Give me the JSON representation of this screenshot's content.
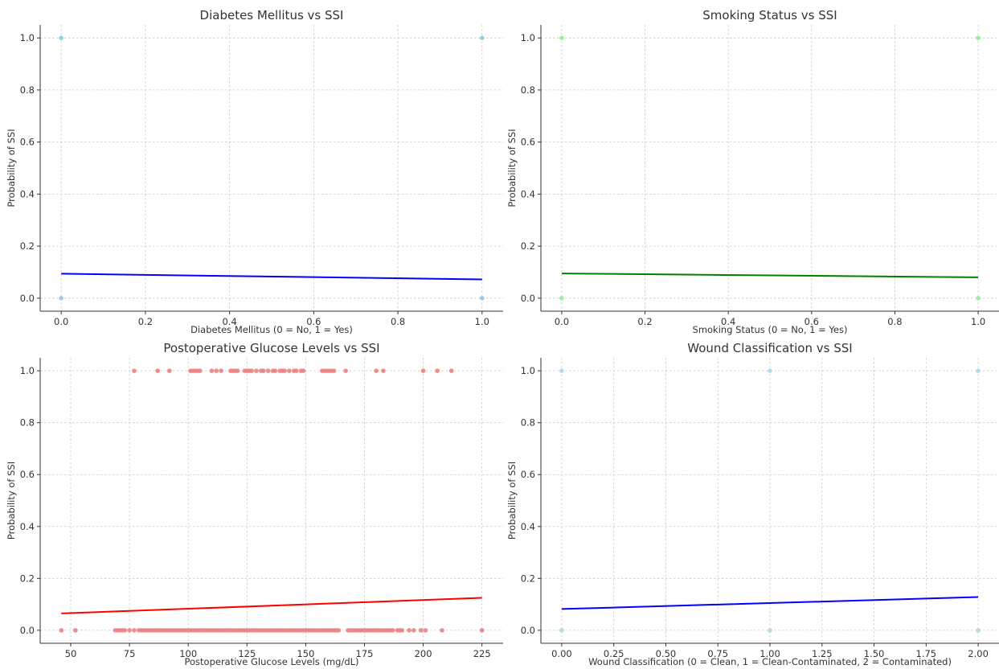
{
  "chart_data": [
    {
      "id": "diabetes",
      "type": "scatter",
      "title": "Diabetes Mellitus vs SSI",
      "xlabel": "Diabetes Mellitus (0 = No, 1 = Yes)",
      "ylabel": "Probability of SSI",
      "xlim": [
        -0.05,
        1.05
      ],
      "ylim": [
        -0.05,
        1.05
      ],
      "xticks": [
        0.0,
        0.2,
        0.4,
        0.6,
        0.8,
        1.0
      ],
      "xtick_labels": [
        "0.0",
        "0.2",
        "0.4",
        "0.6",
        "0.8",
        "1.0"
      ],
      "yticks": [
        0.0,
        0.2,
        0.4,
        0.6,
        0.8,
        1.0
      ],
      "ytick_labels": [
        "0.0",
        "0.2",
        "0.4",
        "0.6",
        "0.8",
        "1.0"
      ],
      "grid": true,
      "points": {
        "x": [
          0,
          0,
          1,
          1
        ],
        "y": [
          0,
          1,
          0,
          1
        ],
        "color": "#8ec9e0"
      },
      "fit_line": {
        "x": [
          0,
          1
        ],
        "y": [
          0.094,
          0.072
        ],
        "color": "#0000ff"
      }
    },
    {
      "id": "smoking",
      "type": "scatter",
      "title": "Smoking Status vs SSI",
      "xlabel": "Smoking Status (0 = No, 1 = Yes)",
      "ylabel": "Probability of SSI",
      "xlim": [
        -0.05,
        1.05
      ],
      "ylim": [
        -0.05,
        1.05
      ],
      "xticks": [
        0.0,
        0.2,
        0.4,
        0.6,
        0.8,
        1.0
      ],
      "xtick_labels": [
        "0.0",
        "0.2",
        "0.4",
        "0.6",
        "0.8",
        "1.0"
      ],
      "yticks": [
        0.0,
        0.2,
        0.4,
        0.6,
        0.8,
        1.0
      ],
      "ytick_labels": [
        "0.0",
        "0.2",
        "0.4",
        "0.6",
        "0.8",
        "1.0"
      ],
      "grid": true,
      "points": {
        "x": [
          0,
          0,
          1,
          1
        ],
        "y": [
          0,
          1,
          0,
          1
        ],
        "color": "#90ee90"
      },
      "fit_line": {
        "x": [
          0,
          1
        ],
        "y": [
          0.095,
          0.08
        ],
        "color": "#008000"
      }
    },
    {
      "id": "glucose",
      "type": "scatter",
      "title": "Postoperative Glucose Levels vs SSI",
      "xlabel": "Postoperative Glucose Levels (mg/dL)",
      "ylabel": "Probability of SSI",
      "xlim": [
        37,
        234
      ],
      "ylim": [
        -0.05,
        1.05
      ],
      "xticks": [
        50,
        75,
        100,
        125,
        150,
        175,
        200,
        225
      ],
      "xtick_labels": [
        "50",
        "75",
        "100",
        "125",
        "150",
        "175",
        "200",
        "225"
      ],
      "yticks": [
        0.0,
        0.2,
        0.4,
        0.6,
        0.8,
        1.0
      ],
      "ytick_labels": [
        "0.0",
        "0.2",
        "0.4",
        "0.6",
        "0.8",
        "1.0"
      ],
      "grid": true,
      "points_y1": [
        77,
        87,
        92,
        101,
        102,
        103,
        104,
        105,
        110,
        112,
        114,
        118,
        119,
        120,
        121,
        124,
        125,
        126,
        127,
        129,
        131,
        132,
        134,
        136,
        137,
        139,
        140,
        141,
        143,
        145,
        146,
        148,
        149,
        157,
        158,
        159,
        160,
        161,
        162,
        167,
        180,
        183,
        200,
        206,
        212
      ],
      "points_y0": [
        46,
        52,
        69,
        70,
        71,
        72,
        73,
        75,
        77,
        79,
        80,
        81,
        82,
        83,
        84,
        85,
        86,
        87,
        88,
        89,
        90,
        91,
        92,
        93,
        94,
        95,
        96,
        97,
        98,
        99,
        100,
        101,
        102,
        103,
        104,
        105,
        106,
        107,
        108,
        109,
        110,
        111,
        112,
        113,
        114,
        115,
        116,
        117,
        118,
        119,
        120,
        121,
        122,
        123,
        124,
        125,
        126,
        127,
        128,
        129,
        130,
        131,
        132,
        133,
        134,
        135,
        136,
        137,
        138,
        139,
        140,
        141,
        142,
        143,
        144,
        145,
        146,
        147,
        148,
        149,
        150,
        151,
        152,
        153,
        154,
        155,
        156,
        157,
        158,
        159,
        160,
        161,
        162,
        163,
        164,
        168,
        169,
        170,
        171,
        172,
        173,
        174,
        175,
        176,
        177,
        178,
        179,
        180,
        181,
        182,
        183,
        184,
        185,
        186,
        187,
        189,
        190,
        191,
        194,
        196,
        199,
        201,
        208,
        225
      ],
      "point_color": "#f08080",
      "fit_line": {
        "x": [
          46,
          225
        ],
        "y": [
          0.065,
          0.125
        ],
        "color": "#ff0000"
      }
    },
    {
      "id": "wound",
      "type": "scatter",
      "title": "Wound Classification vs SSI",
      "xlabel": "Wound Classification (0 = Clean, 1 = Clean-Contaminated, 2 = Contaminated)",
      "ylabel": "Probability of SSI",
      "xlim": [
        -0.1,
        2.1
      ],
      "ylim": [
        -0.05,
        1.05
      ],
      "xticks": [
        0.0,
        0.25,
        0.5,
        0.75,
        1.0,
        1.25,
        1.5,
        1.75,
        2.0
      ],
      "xtick_labels": [
        "0.00",
        "0.25",
        "0.50",
        "0.75",
        "1.00",
        "1.25",
        "1.50",
        "1.75",
        "2.00"
      ],
      "yticks": [
        0.0,
        0.2,
        0.4,
        0.6,
        0.8,
        1.0
      ],
      "ytick_labels": [
        "0.0",
        "0.2",
        "0.4",
        "0.6",
        "0.8",
        "1.0"
      ],
      "grid": true,
      "points": {
        "x": [
          0,
          0,
          1,
          1,
          2,
          2
        ],
        "y": [
          0,
          1,
          0,
          1,
          0,
          1
        ],
        "color": "#add8e6"
      },
      "fit_line": {
        "x": [
          0,
          2
        ],
        "y": [
          0.082,
          0.128
        ],
        "color": "#0000ff"
      }
    }
  ]
}
